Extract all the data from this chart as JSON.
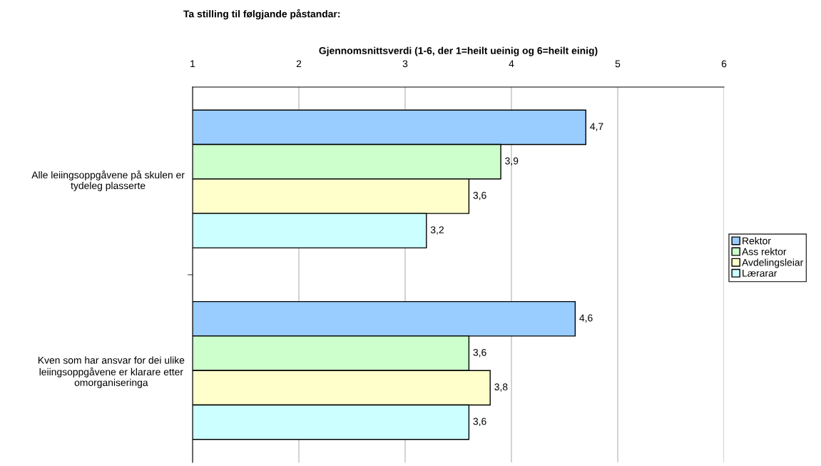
{
  "chart_data": {
    "type": "bar",
    "orientation": "horizontal",
    "title": "Ta stilling til følgjande påstandar:",
    "xlabel": "Gjennomsnittsverdi (1-6, der 1=heilt ueinig og 6=heilt einig)",
    "categories": [
      "Alle leiingsoppgåvene på skulen er tydeleg plasserte",
      "Kven som har ansvar for dei ulike leiingsoppgåvene er klarare etter omorganiseringa"
    ],
    "series": [
      {
        "name": "Rektor",
        "color": "#99ccff",
        "values": [
          4.7,
          4.6
        ],
        "value_labels": [
          "4,7",
          "4,6"
        ]
      },
      {
        "name": "Ass rektor",
        "color": "#ccffcc",
        "values": [
          3.9,
          3.6
        ],
        "value_labels": [
          "3,9",
          "3,6"
        ]
      },
      {
        "name": "Avdelingsleiar",
        "color": "#ffffcc",
        "values": [
          3.6,
          3.8
        ],
        "value_labels": [
          "3,6",
          "3,8"
        ]
      },
      {
        "name": "Lærarar",
        "color": "#ccffff",
        "values": [
          3.2,
          3.6
        ],
        "value_labels": [
          "3,2",
          "3,6"
        ]
      }
    ],
    "xlim": [
      1,
      6
    ],
    "xticks": [
      1,
      2,
      3,
      4,
      5,
      6
    ],
    "grid": "x",
    "legend": "right"
  }
}
